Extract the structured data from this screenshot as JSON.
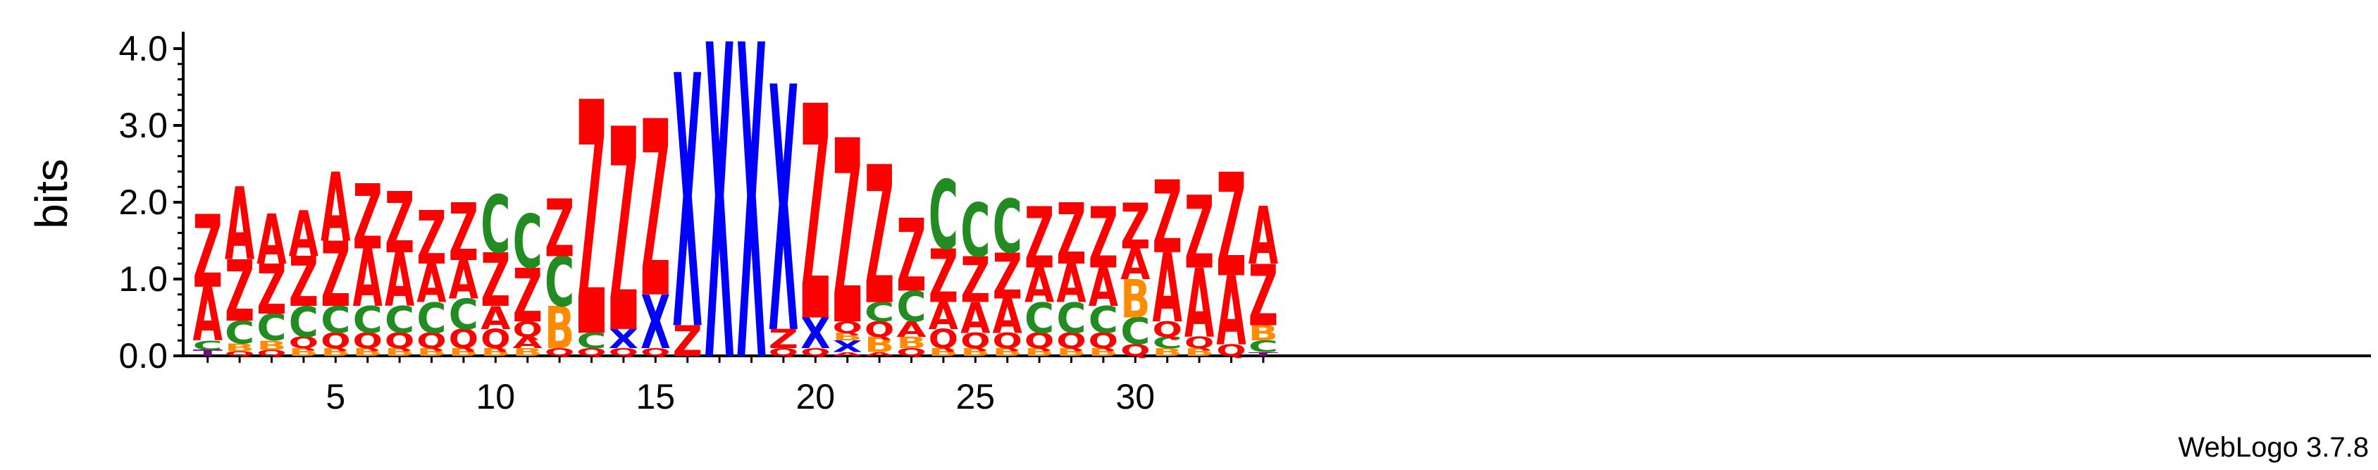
{
  "chart_data": {
    "type": "sequence-logo",
    "title": "",
    "xlabel": "",
    "ylabel": "bits",
    "ylim": [
      0,
      4.2
    ],
    "y_ticks": [
      "0.0",
      "1.0",
      "2.0",
      "3.0",
      "4.0"
    ],
    "y_tick_values": [
      0,
      1,
      2,
      3,
      4
    ],
    "x_ticks": [
      "5",
      "10",
      "15",
      "20",
      "25",
      "30"
    ],
    "x_tick_values": [
      5,
      10,
      15,
      20,
      25,
      30
    ],
    "positions": 34,
    "credit": "WebLogo 3.7.8",
    "colors": {
      "Z": "#ff0000",
      "A": "#ff0000",
      "C": "#228b22",
      "Q": "#ff0000",
      "B": "#ff8c00",
      "X": "#0000ff",
      "T": "#800080"
    },
    "columns": [
      [
        [
          "T",
          0.08
        ],
        [
          "C",
          0.12
        ],
        [
          "A",
          0.7
        ],
        [
          "Z",
          0.95
        ]
      ],
      [
        [
          "Q",
          0.06
        ],
        [
          "B",
          0.1
        ],
        [
          "C",
          0.3
        ],
        [
          "Z",
          0.8
        ],
        [
          "A",
          0.95
        ]
      ],
      [
        [
          "Q",
          0.08
        ],
        [
          "B",
          0.12
        ],
        [
          "C",
          0.35
        ],
        [
          "Z",
          0.65
        ],
        [
          "A",
          0.65
        ]
      ],
      [
        [
          "B",
          0.1
        ],
        [
          "Q",
          0.15
        ],
        [
          "C",
          0.4
        ],
        [
          "Z",
          0.65
        ],
        [
          "A",
          0.6
        ]
      ],
      [
        [
          "B",
          0.1
        ],
        [
          "Q",
          0.2
        ],
        [
          "C",
          0.35
        ],
        [
          "Z",
          0.85
        ],
        [
          "A",
          0.9
        ]
      ],
      [
        [
          "B",
          0.1
        ],
        [
          "Q",
          0.2
        ],
        [
          "C",
          0.35
        ],
        [
          "A",
          0.75
        ],
        [
          "Z",
          0.85
        ]
      ],
      [
        [
          "B",
          0.1
        ],
        [
          "Q",
          0.2
        ],
        [
          "C",
          0.35
        ],
        [
          "A",
          0.7
        ],
        [
          "Z",
          0.8
        ]
      ],
      [
        [
          "B",
          0.1
        ],
        [
          "Q",
          0.2
        ],
        [
          "C",
          0.4
        ],
        [
          "A",
          0.5
        ],
        [
          "Z",
          0.7
        ]
      ],
      [
        [
          "B",
          0.1
        ],
        [
          "Q",
          0.25
        ],
        [
          "C",
          0.4
        ],
        [
          "A",
          0.5
        ],
        [
          "Z",
          0.75
        ]
      ],
      [
        [
          "B",
          0.1
        ],
        [
          "Q",
          0.25
        ],
        [
          "A",
          0.3
        ],
        [
          "Z",
          0.7
        ],
        [
          "C",
          0.75
        ]
      ],
      [
        [
          "B",
          0.1
        ],
        [
          "A",
          0.15
        ],
        [
          "Q",
          0.2
        ],
        [
          "Z",
          0.7
        ],
        [
          "C",
          0.7
        ]
      ],
      [
        [
          "Q",
          0.1
        ],
        [
          "B",
          0.55
        ],
        [
          "C",
          0.65
        ],
        [
          "Z",
          0.75
        ]
      ],
      [
        [
          "Q",
          0.1
        ],
        [
          "C",
          0.2
        ],
        [
          "Z",
          3.05
        ]
      ],
      [
        [
          "Q",
          0.1
        ],
        [
          "X",
          0.25
        ],
        [
          "Z",
          2.65
        ]
      ],
      [
        [
          "Q",
          0.1
        ],
        [
          "X",
          0.7
        ],
        [
          "Z",
          2.3
        ]
      ],
      [
        [
          "Z",
          0.4
        ],
        [
          "X",
          3.3
        ]
      ],
      [
        [
          "X",
          4.1
        ]
      ],
      [
        [
          "X",
          4.1
        ]
      ],
      [
        [
          "Q",
          0.1
        ],
        [
          "Z",
          0.25
        ],
        [
          "X",
          3.2
        ]
      ],
      [
        [
          "Q",
          0.1
        ],
        [
          "X",
          0.4
        ],
        [
          "Z",
          2.8
        ]
      ],
      [
        [
          "A",
          0.05
        ],
        [
          "X",
          0.15
        ],
        [
          "B",
          0.1
        ],
        [
          "Q",
          0.15
        ],
        [
          "Z",
          2.4
        ]
      ],
      [
        [
          "A",
          0.05
        ],
        [
          "B",
          0.2
        ],
        [
          "Q",
          0.2
        ],
        [
          "C",
          0.25
        ],
        [
          "Z",
          1.8
        ]
      ],
      [
        [
          "Q",
          0.1
        ],
        [
          "B",
          0.15
        ],
        [
          "A",
          0.2
        ],
        [
          "C",
          0.4
        ],
        [
          "Z",
          0.95
        ]
      ],
      [
        [
          "B",
          0.1
        ],
        [
          "Q",
          0.25
        ],
        [
          "A",
          0.35
        ],
        [
          "Z",
          0.7
        ],
        [
          "C",
          0.9
        ]
      ],
      [
        [
          "B",
          0.1
        ],
        [
          "Q",
          0.2
        ],
        [
          "A",
          0.4
        ],
        [
          "Z",
          0.6
        ],
        [
          "C",
          0.7
        ]
      ],
      [
        [
          "B",
          0.1
        ],
        [
          "Q",
          0.2
        ],
        [
          "A",
          0.45
        ],
        [
          "Z",
          0.6
        ],
        [
          "C",
          0.7
        ]
      ],
      [
        [
          "B",
          0.1
        ],
        [
          "Q",
          0.2
        ],
        [
          "C",
          0.4
        ],
        [
          "A",
          0.45
        ],
        [
          "Z",
          0.8
        ]
      ],
      [
        [
          "B",
          0.1
        ],
        [
          "Q",
          0.2
        ],
        [
          "C",
          0.4
        ],
        [
          "A",
          0.5
        ],
        [
          "Z",
          0.8
        ]
      ],
      [
        [
          "B",
          0.1
        ],
        [
          "Q",
          0.2
        ],
        [
          "C",
          0.35
        ],
        [
          "A",
          0.5
        ],
        [
          "Z",
          0.8
        ]
      ],
      [
        [
          "Q",
          0.15
        ],
        [
          "C",
          0.35
        ],
        [
          "B",
          0.5
        ],
        [
          "A",
          0.4
        ],
        [
          "Z",
          0.6
        ]
      ],
      [
        [
          "B",
          0.1
        ],
        [
          "C",
          0.15
        ],
        [
          "Q",
          0.2
        ],
        [
          "A",
          0.9
        ],
        [
          "Z",
          0.95
        ]
      ],
      [
        [
          "B",
          0.1
        ],
        [
          "Q",
          0.15
        ],
        [
          "A",
          0.9
        ],
        [
          "Z",
          0.95
        ]
      ],
      [
        [
          "Q",
          0.15
        ],
        [
          "A",
          0.9
        ],
        [
          "Z",
          1.35
        ]
      ],
      [
        [
          "T",
          0.05
        ],
        [
          "C",
          0.15
        ],
        [
          "B",
          0.2
        ],
        [
          "Z",
          0.8
        ],
        [
          "A",
          0.75
        ]
      ]
    ]
  }
}
